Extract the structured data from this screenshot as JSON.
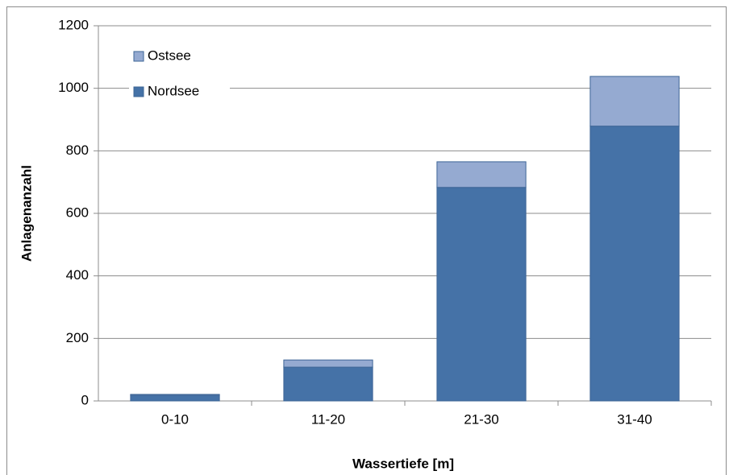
{
  "chart_data": {
    "type": "bar",
    "stacked": true,
    "x_label": "Wassertiefe [m]",
    "y_label": "Anlagenanzahl",
    "categories": [
      "0-10",
      "11-20",
      "21-30",
      "31-40"
    ],
    "series": [
      {
        "name": "Nordsee",
        "color": "#4572a7",
        "values": [
          18,
          108,
          683,
          879
        ]
      },
      {
        "name": "Ostsee",
        "color": "#95aad1",
        "values": [
          3,
          23,
          82,
          159
        ]
      }
    ],
    "ylim": [
      0,
      1200
    ],
    "yticks": [
      0,
      200,
      400,
      600,
      800,
      1000,
      1200
    ],
    "grid": true,
    "legend": "top-left"
  }
}
